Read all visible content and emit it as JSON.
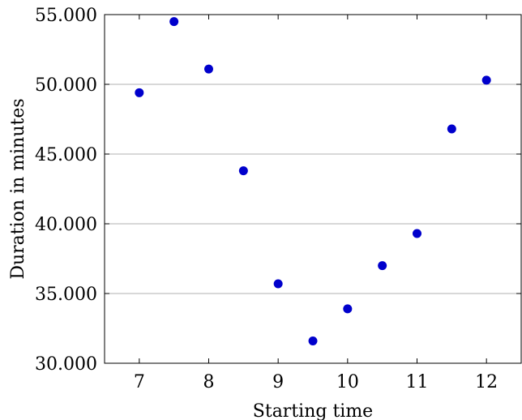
{
  "chart_data": {
    "type": "scatter",
    "title": "",
    "xlabel": "Starting time",
    "ylabel": "Duration in minutes",
    "xlim": [
      6.5,
      12.5
    ],
    "ylim": [
      30,
      55
    ],
    "xticks": [
      7,
      8,
      9,
      10,
      11,
      12
    ],
    "yticks": [
      30,
      35,
      40,
      45,
      50,
      55
    ],
    "xtick_labels": [
      "7",
      "8",
      "9",
      "10",
      "11",
      "12"
    ],
    "ytick_labels": [
      "30.000",
      "35.000",
      "40.000",
      "45.000",
      "50.000",
      "55.000"
    ],
    "grid": "horizontal",
    "series": [
      {
        "color": "#0000cc",
        "x": [
          7,
          7.5,
          8,
          8.5,
          9,
          9.5,
          10,
          10.5,
          11,
          11.5,
          12
        ],
        "y": [
          49.4,
          54.5,
          51.1,
          43.8,
          35.7,
          31.6,
          33.9,
          37.0,
          39.3,
          46.8,
          50.3
        ]
      }
    ]
  }
}
